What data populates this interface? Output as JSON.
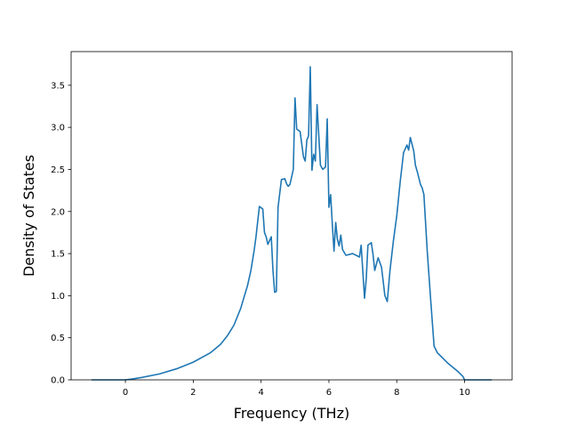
{
  "chart_data": {
    "type": "line",
    "xlabel": "Frequency (THz)",
    "ylabel": "Density of States",
    "xlim": [
      -1.6,
      11.4
    ],
    "ylim": [
      0.0,
      3.9
    ],
    "x_ticks": [
      0,
      2,
      4,
      6,
      8,
      10
    ],
    "x_tick_labels": [
      "0",
      "2",
      "4",
      "6",
      "8",
      "10"
    ],
    "y_ticks": [
      0.0,
      0.5,
      1.0,
      1.5,
      2.0,
      2.5,
      3.0,
      3.5
    ],
    "y_tick_labels": [
      "0.0",
      "0.5",
      "1.0",
      "1.5",
      "2.0",
      "2.5",
      "3.0",
      "3.5"
    ],
    "grid": false,
    "line_color": "#1f77b4",
    "series": [
      {
        "x": [
          -1.0,
          -0.5,
          0.0,
          0.2,
          0.5,
          1.0,
          1.5,
          2.0,
          2.5,
          2.8,
          3.0,
          3.2,
          3.4,
          3.6,
          3.7,
          3.8,
          3.85,
          3.95,
          4.05,
          4.1,
          4.15,
          4.2,
          4.3,
          4.35,
          4.4,
          4.45,
          4.5,
          4.6,
          4.7,
          4.75,
          4.8,
          4.85,
          4.95,
          5.0,
          5.05,
          5.15,
          5.25,
          5.3,
          5.35,
          5.4,
          5.45,
          5.5,
          5.55,
          5.6,
          5.65,
          5.75,
          5.82,
          5.9,
          5.95,
          6.0,
          6.05,
          6.1,
          6.15,
          6.2,
          6.25,
          6.3,
          6.35,
          6.4,
          6.5,
          6.7,
          6.9,
          6.95,
          7.05,
          7.1,
          7.15,
          7.25,
          7.3,
          7.35,
          7.45,
          7.55,
          7.65,
          7.72,
          7.8,
          7.9,
          8.0,
          8.1,
          8.2,
          8.3,
          8.35,
          8.4,
          8.5,
          8.55,
          8.6,
          8.7,
          8.75,
          8.8,
          8.9,
          9.0,
          9.1,
          9.2,
          9.5,
          9.8,
          9.95,
          10.0,
          10.4,
          10.8
        ],
        "y": [
          0.0,
          0.0,
          0.0,
          0.01,
          0.03,
          0.07,
          0.13,
          0.21,
          0.32,
          0.42,
          0.52,
          0.65,
          0.85,
          1.12,
          1.3,
          1.55,
          1.7,
          2.06,
          2.03,
          1.75,
          1.7,
          1.61,
          1.7,
          1.3,
          1.04,
          1.05,
          2.05,
          2.38,
          2.39,
          2.33,
          2.3,
          2.32,
          2.5,
          3.35,
          2.98,
          2.95,
          2.65,
          2.6,
          2.85,
          2.9,
          3.72,
          2.49,
          2.68,
          2.6,
          3.27,
          2.55,
          2.5,
          2.53,
          3.1,
          2.05,
          2.2,
          1.85,
          1.53,
          1.87,
          1.67,
          1.59,
          1.72,
          1.55,
          1.48,
          1.5,
          1.46,
          1.6,
          0.97,
          1.2,
          1.6,
          1.63,
          1.49,
          1.3,
          1.45,
          1.34,
          1.0,
          0.93,
          1.3,
          1.65,
          1.95,
          2.35,
          2.7,
          2.79,
          2.73,
          2.88,
          2.72,
          2.55,
          2.48,
          2.32,
          2.28,
          2.2,
          1.52,
          0.95,
          0.4,
          0.32,
          0.2,
          0.1,
          0.04,
          0.0,
          0.0,
          0.0
        ]
      }
    ]
  }
}
